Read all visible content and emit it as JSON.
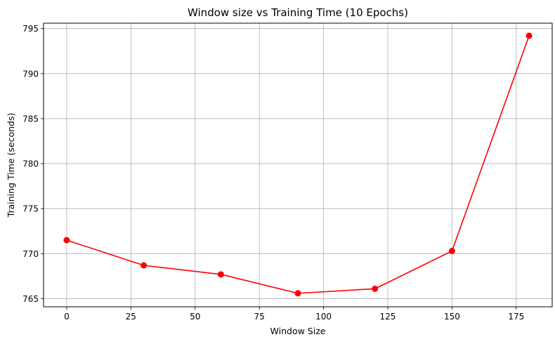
{
  "chart_data": {
    "type": "line",
    "title": "Window size vs Training Time (10 Epochs)",
    "xlabel": "Window Size",
    "ylabel": "Training Time (seconds)",
    "xlim": [
      -9,
      189
    ],
    "ylim": [
      764.1,
      795.6
    ],
    "xticks": [
      0,
      25,
      50,
      75,
      100,
      125,
      150,
      175
    ],
    "yticks": [
      765,
      770,
      775,
      780,
      785,
      790,
      795
    ],
    "grid": true,
    "series": [
      {
        "color": "#ff0000",
        "marker": "circle",
        "x": [
          0,
          30,
          60,
          90,
          120,
          150,
          180
        ],
        "y": [
          771.5,
          768.7,
          767.7,
          765.6,
          766.1,
          770.3,
          794.2
        ]
      }
    ]
  }
}
